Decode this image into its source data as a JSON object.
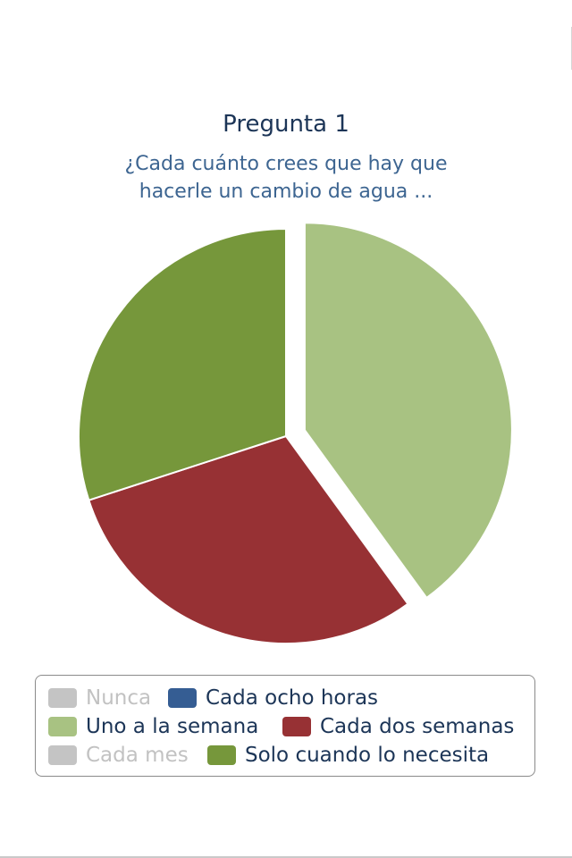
{
  "chart_data": {
    "type": "pie",
    "title": "Pregunta 1",
    "subtitle_lines": [
      "¿Cada cuánto crees que hay que",
      "hacerle un cambio de agua ..."
    ],
    "slices": [
      {
        "label": "Uno a la semana",
        "value": 40,
        "color": "#a8c282",
        "exploded": true
      },
      {
        "label": "Cada dos semanas",
        "value": 30,
        "color": "#973134",
        "exploded": false
      },
      {
        "label": "Solo cuando lo necesita",
        "value": 30,
        "color": "#76973b",
        "exploded": false
      }
    ],
    "legend": [
      {
        "label": "Nunca",
        "color": "#c4c4c4",
        "hidden": true
      },
      {
        "label": "Cada ocho horas",
        "color": "#355d93",
        "hidden": false
      },
      {
        "label": "Uno a la semana",
        "color": "#a8c282",
        "hidden": false
      },
      {
        "label": "Cada dos semanas",
        "color": "#973134",
        "hidden": false
      },
      {
        "label": "Cada mes",
        "color": "#c4c4c4",
        "hidden": true
      },
      {
        "label": "Solo cuando lo necesita",
        "color": "#76973b",
        "hidden": false
      }
    ],
    "legend_position": "bottom"
  }
}
